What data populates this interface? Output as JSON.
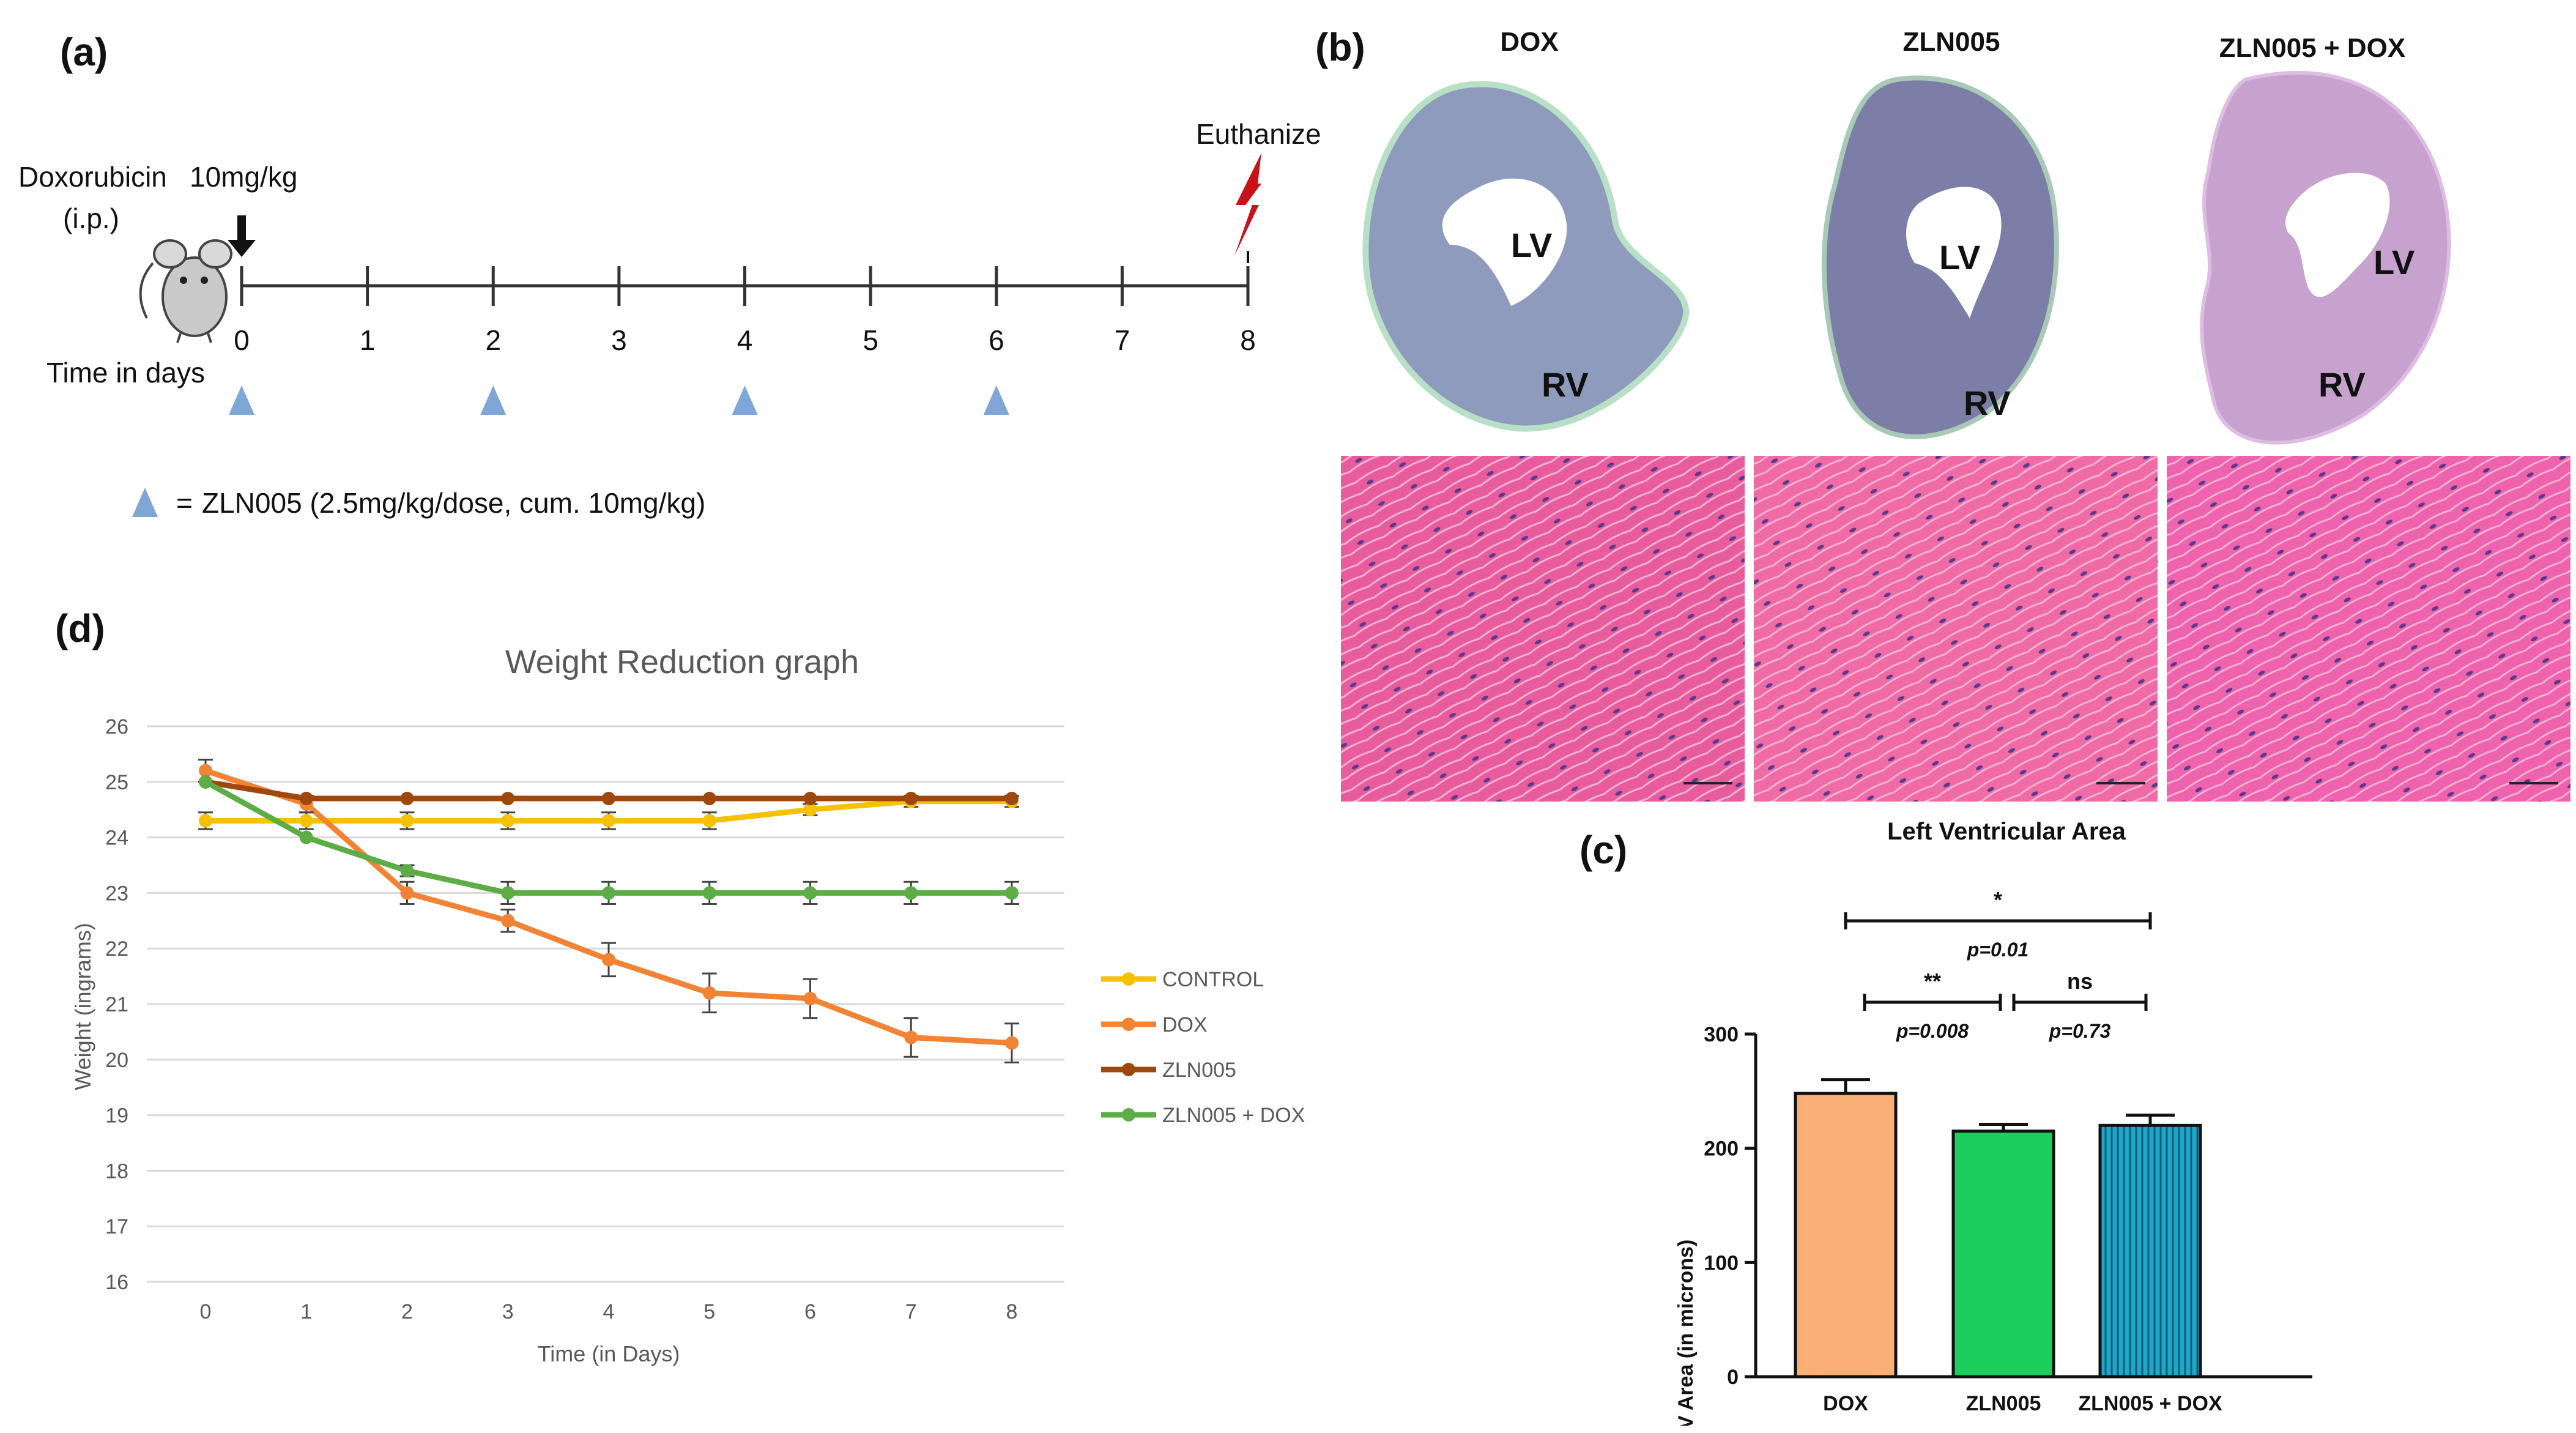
{
  "panel_a": {
    "label": "(a)",
    "drug": "Doxorubicin",
    "route": "(i.p.)",
    "dose": "10mg/kg",
    "euthanize": "Euthanize",
    "time_label": "Time in days",
    "days": [
      "0",
      "1",
      "2",
      "3",
      "4",
      "5",
      "6",
      "7",
      "8"
    ],
    "zln_days": [
      0,
      2,
      4,
      6
    ],
    "legend_eq": "=",
    "legend_text": "ZLN005 (2.5mg/kg/dose, cum. 10mg/kg)",
    "colors": {
      "triangle": "#7ea6d6",
      "bolt": "#c8121a"
    }
  },
  "panel_b": {
    "label": "(b)",
    "columns": [
      {
        "title": "DOX",
        "lv": "LV",
        "rv": "RV",
        "tissue": "#8f9bbd"
      },
      {
        "title": "ZLN005",
        "lv": "LV",
        "rv": "RV",
        "tissue": "#7c7ea8"
      },
      {
        "title": "ZLN005 + DOX",
        "lv": "LV",
        "rv": "RV",
        "tissue": "#c8a2cf"
      }
    ],
    "micro_colors": [
      "#e85c9e",
      "#f06ba6",
      "#ef62ad"
    ]
  },
  "panel_c": {
    "label": "(c)",
    "chart_data": {
      "type": "bar",
      "title": "Left Ventricular Area",
      "ylabel": "LV Area (in microns)",
      "categories": [
        "DOX",
        "ZLN005",
        "ZLN005 + DOX"
      ],
      "values": [
        248,
        215,
        220
      ],
      "errors": [
        12,
        6,
        9
      ],
      "ylim": [
        0,
        300
      ],
      "yticks": [
        0,
        100,
        200,
        300
      ],
      "colors": [
        "#fbb078",
        "#1ccf5c",
        "#1ea7c9"
      ],
      "annotations": [
        {
          "from": 0,
          "to": 2,
          "sig": "*",
          "p": "p=0.01"
        },
        {
          "from": 0,
          "to": 1,
          "sig": "**",
          "p": "p=0.008"
        },
        {
          "from": 1,
          "to": 2,
          "sig": "ns",
          "p": "p=0.73"
        }
      ]
    }
  },
  "panel_d": {
    "label": "(d)",
    "chart_data": {
      "type": "line",
      "title": "Weight Reduction graph",
      "xlabel": "Time (in Days)",
      "ylabel": "Weight (ingrams)",
      "x": [
        0,
        1,
        2,
        3,
        4,
        5,
        6,
        7,
        8
      ],
      "xticks": [
        "0",
        "1",
        "2",
        "3",
        "4",
        "5",
        "6",
        "7",
        "8"
      ],
      "yticks": [
        16,
        17,
        18,
        19,
        20,
        21,
        22,
        23,
        24,
        25,
        26
      ],
      "ylim": [
        16,
        26
      ],
      "series": [
        {
          "name": "CONTROL",
          "color": "#f5c100",
          "values": [
            24.3,
            24.3,
            24.3,
            24.3,
            24.3,
            24.3,
            24.5,
            24.65,
            24.65
          ],
          "errors": [
            0.15,
            0.15,
            0.15,
            0.15,
            0.15,
            0.15,
            0.1,
            0.1,
            0.1
          ]
        },
        {
          "name": "DOX",
          "color": "#f28234",
          "values": [
            25.2,
            24.6,
            23.0,
            22.5,
            21.8,
            21.2,
            21.1,
            20.4,
            20.3
          ],
          "errors": [
            0.2,
            0.15,
            0.2,
            0.2,
            0.3,
            0.35,
            0.35,
            0.35,
            0.35
          ]
        },
        {
          "name": "ZLN005",
          "color": "#9e480e",
          "values": [
            25.0,
            24.7,
            24.7,
            24.7,
            24.7,
            24.7,
            24.7,
            24.7,
            24.7
          ],
          "errors": [
            0,
            0,
            0,
            0,
            0,
            0,
            0,
            0,
            0
          ]
        },
        {
          "name": "ZLN005 + DOX",
          "color": "#5cad45",
          "values": [
            25.0,
            24.0,
            23.4,
            23.0,
            23.0,
            23.0,
            23.0,
            23.0,
            23.0
          ],
          "errors": [
            0,
            0,
            0.1,
            0.2,
            0.2,
            0.2,
            0.2,
            0.2,
            0.2
          ]
        }
      ]
    }
  }
}
